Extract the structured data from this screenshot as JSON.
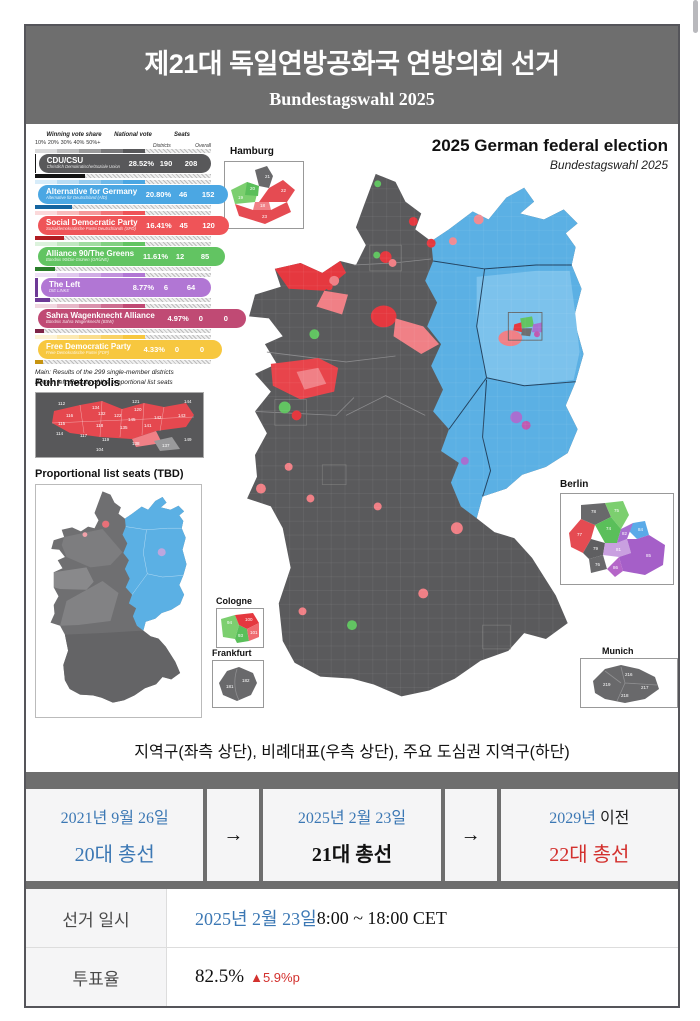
{
  "page": {
    "title": "제21대 독일연방공화국 연방의회 선거",
    "subtitle": "Bundestagswahl 2025"
  },
  "infographic": {
    "title": "2025 German federal election",
    "subtitle": "Bundestagswahl 2025",
    "legend": {
      "share_header": "Winning vote share",
      "ticks": [
        "10%",
        "20%",
        "30%",
        "40%",
        "50%+"
      ],
      "national_vote_header": "National vote",
      "seats_header": "Seats",
      "seats_sub": [
        "Districts",
        "Overall"
      ],
      "parties": [
        {
          "name": "CDU/CSU",
          "full": "Christlich Demokratische/Soziale Union",
          "vote": "28.52%",
          "districts": "190",
          "overall": "208",
          "color": "#58585a",
          "dark": "#141414",
          "share": 28.52
        },
        {
          "name": "Alternative for Germany",
          "full": "Alternative für Deutschland (AfD)",
          "vote": "20.80%",
          "districts": "46",
          "overall": "152",
          "color": "#4ba7e3",
          "dark": "#1565a0",
          "share": 20.8
        },
        {
          "name": "Social Democratic Party",
          "full": "Sozialdemokratische Partei Deutschlands (SPD)",
          "vote": "16.41%",
          "districts": "45",
          "overall": "120",
          "color": "#ef5458",
          "dark": "#b01c22",
          "share": 16.41
        },
        {
          "name": "Alliance 90/The Greens",
          "full": "Bündnis 90/Die Grünen (GRÜNE)",
          "vote": "11.61%",
          "districts": "12",
          "overall": "85",
          "color": "#62c462",
          "dark": "#2a7d2a",
          "share": 11.61
        },
        {
          "name": "The Left",
          "full": "DIE LINKE",
          "vote": "8.77%",
          "districts": "6",
          "overall": "64",
          "color": "#b176d4",
          "dark": "#6e3a96",
          "share": 8.77
        },
        {
          "name": "Sahra Wagenknecht Alliance",
          "full": "Bündnis Sahra Wagenknecht (BSW)",
          "vote": "4.97%",
          "districts": "0",
          "overall": "0",
          "color": "#c04a74",
          "dark": "#7e2547",
          "share": 4.97
        },
        {
          "name": "Free Democratic Party",
          "full": "Freie Demokratische Partei (FDP)",
          "vote": "4.33%",
          "districts": "0",
          "overall": "0",
          "color": "#f7c73f",
          "dark": "#c79410",
          "share": 4.33
        }
      ],
      "note1": "Main: Results of the 299 single-member districts",
      "note2": "Bottom left: Results of the proportional list seats"
    },
    "insets": {
      "hamburg": "Hamburg",
      "berlin": "Berlin",
      "cologne": "Cologne",
      "frankfurt": "Frankfurt",
      "munich": "Munich",
      "ruhr": "Ruhr metropolis",
      "proportional": "Proportional list seats (TBD)",
      "hamburg_nums": [
        "21",
        "22",
        "20",
        "19",
        "18",
        "23"
      ],
      "berlin_nums": [
        "78",
        "77",
        "75",
        "74",
        "79",
        "76",
        "84",
        "82",
        "81",
        "85",
        "86"
      ],
      "cologne_nums": [
        "94",
        "100",
        "93",
        "101"
      ],
      "frankfurt_nums": [
        "181",
        "182"
      ],
      "munich_nums": [
        "216",
        "219",
        "217",
        "218"
      ]
    },
    "ruhr_nums": [
      "112",
      "134",
      "121",
      "144",
      "116",
      "132",
      "122",
      "120",
      "145",
      "142",
      "143",
      "115",
      "118",
      "135",
      "141",
      "114",
      "117",
      "119",
      "138",
      "137",
      "104",
      "149"
    ]
  },
  "caption": "지역구(좌측 상단), 비례대표(우측 상단), 주요 도심권 지역구(하단)",
  "timeline": {
    "arrow": "→",
    "prev": {
      "date": "2021년 9월 26일",
      "name": "20대 총선"
    },
    "current": {
      "date": "2025년 2월 23일",
      "name": "21대 총선"
    },
    "next": {
      "date_blue": "2029년",
      "date_rest": " 이전",
      "name": "22대 총선"
    }
  },
  "info_rows": {
    "schedule_label": "선거 일시",
    "schedule_blue": "2025년 2월 23일",
    "schedule_rest": " 8:00 ~ 18:00 CET",
    "turnout_label": "투표율",
    "turnout_value": "82.5%",
    "turnout_delta": "▲5.9%p"
  },
  "colors": {
    "link_blue": "#3c78b4",
    "alert_red": "#d3312e",
    "frame_gray": "#6e6e6e",
    "cell_bg": "#f5f5f6",
    "map_blue": "#5bb0e4",
    "map_blue_light": "#7cc2ec",
    "map_gray": "#5a5a5c",
    "map_red": "#e5383f",
    "map_salmon": "#f08086",
    "map_green": "#62c462",
    "map_purple": "#a86fd0",
    "map_magenta": "#c05ab0"
  }
}
